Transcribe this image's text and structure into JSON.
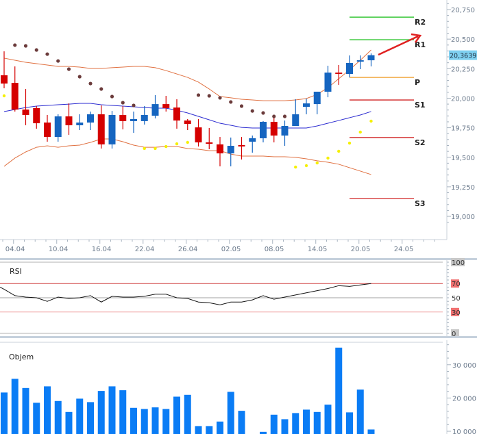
{
  "chart_data": [
    {
      "type": "candlestick",
      "panel": "price",
      "x_tick_labels": [
        "04.04",
        "10.04",
        "16.04",
        "22.04",
        "26.04",
        "02.05",
        "08.05",
        "14.05",
        "20.05",
        "24.05"
      ],
      "y_tick_labels": [
        "20,750",
        "20,500",
        "20,250",
        "20,000",
        "19,750",
        "19,500",
        "19,250",
        "19,000"
      ],
      "y_ticks": [
        20750,
        20500,
        20250,
        20000,
        19750,
        19500,
        19250,
        19000
      ],
      "ylim": [
        18930,
        20830
      ],
      "last_price_label": "20,3639",
      "last_price": 20364,
      "colors": {
        "up": "#1565c0",
        "down": "#d50000",
        "bands": "#e07040",
        "ma": "#2a2ad0",
        "sar_above": "#6b3b3b",
        "sar_below": "#f5f000",
        "last_price_bg": "#7fd0f0",
        "arrow": "#e02020"
      },
      "candles": [
        {
          "o": 20194,
          "h": 20397,
          "l": 20084,
          "c": 20124
        },
        {
          "o": 20130,
          "h": 20269,
          "l": 19887,
          "c": 19904
        },
        {
          "o": 19904,
          "h": 20078,
          "l": 19771,
          "c": 19858
        },
        {
          "o": 19916,
          "h": 19933,
          "l": 19742,
          "c": 19788
        },
        {
          "o": 19794,
          "h": 19858,
          "l": 19632,
          "c": 19672
        },
        {
          "o": 19672,
          "h": 19864,
          "l": 19632,
          "c": 19846
        },
        {
          "o": 19846,
          "h": 19956,
          "l": 19690,
          "c": 19771
        },
        {
          "o": 19771,
          "h": 19864,
          "l": 19730,
          "c": 19794
        },
        {
          "o": 19794,
          "h": 19887,
          "l": 19730,
          "c": 19864
        },
        {
          "o": 19864,
          "h": 19939,
          "l": 19574,
          "c": 19609
        },
        {
          "o": 19609,
          "h": 19892,
          "l": 19574,
          "c": 19858
        },
        {
          "o": 19858,
          "h": 19933,
          "l": 19736,
          "c": 19806
        },
        {
          "o": 19806,
          "h": 19887,
          "l": 19707,
          "c": 19823
        },
        {
          "o": 19806,
          "h": 19933,
          "l": 19777,
          "c": 19858
        },
        {
          "o": 19852,
          "h": 20026,
          "l": 19829,
          "c": 19950
        },
        {
          "o": 19950,
          "h": 20020,
          "l": 19887,
          "c": 19916
        },
        {
          "o": 19921,
          "h": 19991,
          "l": 19742,
          "c": 19811
        },
        {
          "o": 19811,
          "h": 19823,
          "l": 19730,
          "c": 19782
        },
        {
          "o": 19753,
          "h": 19823,
          "l": 19591,
          "c": 19626
        },
        {
          "o": 19626,
          "h": 19748,
          "l": 19568,
          "c": 19614
        },
        {
          "o": 19609,
          "h": 19672,
          "l": 19423,
          "c": 19533
        },
        {
          "o": 19533,
          "h": 19667,
          "l": 19423,
          "c": 19597
        },
        {
          "o": 19603,
          "h": 19672,
          "l": 19481,
          "c": 19597
        },
        {
          "o": 19632,
          "h": 19684,
          "l": 19539,
          "c": 19661
        },
        {
          "o": 19661,
          "h": 19806,
          "l": 19626,
          "c": 19800
        },
        {
          "o": 19800,
          "h": 19852,
          "l": 19626,
          "c": 19684
        },
        {
          "o": 19684,
          "h": 19811,
          "l": 19597,
          "c": 19765
        },
        {
          "o": 19765,
          "h": 19991,
          "l": 19765,
          "c": 19864
        },
        {
          "o": 19927,
          "h": 19997,
          "l": 19864,
          "c": 19956
        },
        {
          "o": 19950,
          "h": 20055,
          "l": 19864,
          "c": 20055
        },
        {
          "o": 20055,
          "h": 20275,
          "l": 20008,
          "c": 20217
        },
        {
          "o": 20217,
          "h": 20281,
          "l": 20113,
          "c": 20205
        },
        {
          "o": 20205,
          "h": 20362,
          "l": 20176,
          "c": 20298
        },
        {
          "o": 20315,
          "h": 20362,
          "l": 20246,
          "c": 20321
        },
        {
          "o": 20321,
          "h": 20379,
          "l": 20269,
          "c": 20364
        }
      ],
      "bollinger_upper": [
        20339,
        20321,
        20304,
        20292,
        20281,
        20269,
        20269,
        20263,
        20252,
        20252,
        20258,
        20263,
        20269,
        20269,
        20258,
        20234,
        20205,
        20176,
        20136,
        20078,
        20014,
        20003,
        19991,
        19985,
        19979,
        19979,
        19979,
        19985,
        19997,
        20032,
        20089,
        20165,
        20240,
        20321,
        20408
      ],
      "moving_average": [
        19887,
        19904,
        19921,
        19933,
        19939,
        19945,
        19950,
        19956,
        19956,
        19945,
        19939,
        19933,
        19927,
        19921,
        19916,
        19916,
        19898,
        19875,
        19846,
        19817,
        19788,
        19771,
        19753,
        19748,
        19748,
        19748,
        19748,
        19748,
        19748,
        19765,
        19788,
        19811,
        19835,
        19858,
        19887
      ],
      "bollinger_lower": [
        19423,
        19493,
        19545,
        19585,
        19597,
        19585,
        19597,
        19603,
        19626,
        19655,
        19655,
        19632,
        19603,
        19585,
        19585,
        19591,
        19591,
        19574,
        19568,
        19556,
        19556,
        19527,
        19510,
        19510,
        19510,
        19504,
        19504,
        19499,
        19487,
        19470,
        19458,
        19441,
        19412,
        19383,
        19354
      ],
      "parabolic_sar": [
        20020,
        20449,
        20443,
        20408,
        20373,
        20315,
        20246,
        20182,
        20124,
        20078,
        20014,
        19962,
        19939,
        19574,
        19574,
        19591,
        19614,
        19626,
        20026,
        20020,
        20003,
        19968,
        19933,
        19892,
        19875,
        19846,
        19846,
        19417,
        19429,
        19452,
        19493,
        19551,
        19620,
        19713,
        19806
      ],
      "parabolic_sar_side": [
        "below",
        "above",
        "above",
        "above",
        "above",
        "above",
        "above",
        "above",
        "above",
        "above",
        "above",
        "above",
        "above",
        "below",
        "below",
        "below",
        "below",
        "below",
        "above",
        "above",
        "above",
        "above",
        "above",
        "above",
        "above",
        "above",
        "above",
        "below",
        "below",
        "below",
        "below",
        "below",
        "below",
        "below",
        "below"
      ],
      "pivots": [
        {
          "label": "R2",
          "value": 20686,
          "color": "#22c022"
        },
        {
          "label": "R1",
          "value": 20495,
          "color": "#22c022"
        },
        {
          "label": "P",
          "value": 20176,
          "color": "#f0a030"
        },
        {
          "label": "S1",
          "value": 19985,
          "color": "#d02020"
        },
        {
          "label": "S2",
          "value": 19667,
          "color": "#d02020"
        },
        {
          "label": "S3",
          "value": 19151,
          "color": "#d02020"
        }
      ]
    },
    {
      "type": "line",
      "panel": "rsi",
      "title": "RSI",
      "ylim": [
        0,
        100
      ],
      "y_tick_labels": [
        "100",
        "70",
        "50",
        "30",
        "0"
      ],
      "levels": [
        100,
        70,
        50,
        30,
        0
      ],
      "level_colors": [
        "#b0b0b0",
        "#d04040",
        "#a0a0a0",
        "#f0a0a0",
        "#b0b0b0"
      ],
      "values": [
        62,
        53,
        51,
        50,
        45,
        51,
        49,
        50,
        53,
        44,
        52,
        51,
        51,
        52,
        55,
        55,
        50,
        49,
        44,
        43,
        40,
        44,
        44,
        47,
        53,
        48,
        51,
        54,
        57,
        60,
        63,
        67,
        66,
        68,
        70
      ]
    },
    {
      "type": "bar",
      "panel": "volume",
      "title": "Objem",
      "y_tick_labels": [
        "30 000",
        "20 000",
        "10 000"
      ],
      "y_ticks": [
        30000,
        20000,
        10000
      ],
      "color": "#0a7cf5",
      "values": [
        21650,
        25760,
        23000,
        18560,
        23500,
        19100,
        15800,
        19800,
        18760,
        22120,
        23500,
        22330,
        17040,
        16700,
        17180,
        16700,
        20400,
        20950,
        11560,
        11560,
        12920,
        21850,
        16150,
        9000,
        9830,
        14980,
        13620,
        15470,
        16500,
        15800,
        18000,
        35140,
        15680,
        22530,
        10530
      ]
    }
  ]
}
